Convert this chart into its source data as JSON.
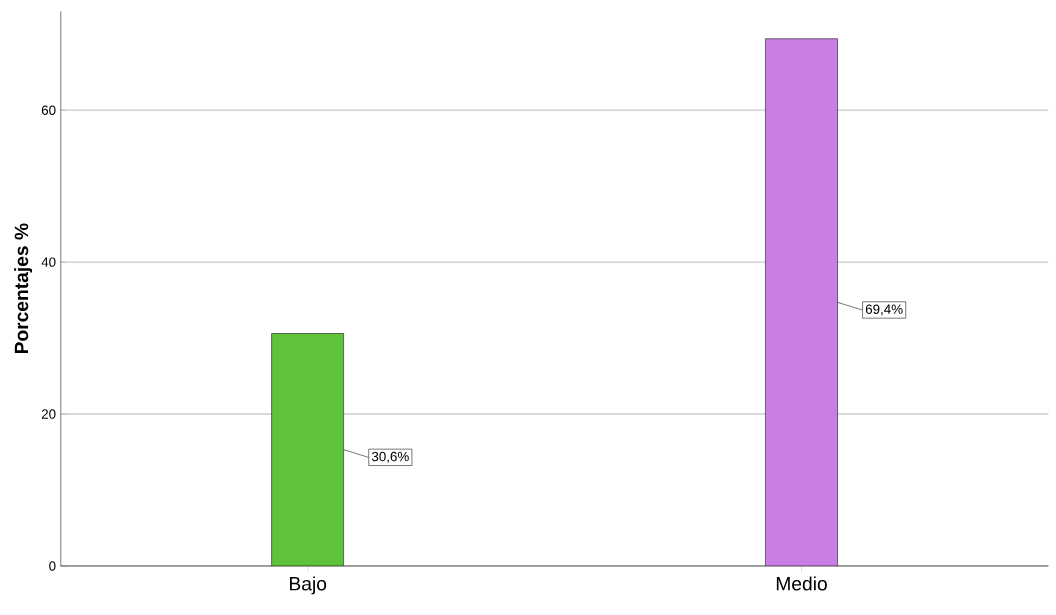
{
  "chart_data": {
    "type": "bar",
    "ylabel": "Porcentajes %",
    "categories": [
      "Bajo",
      "Medio"
    ],
    "values": [
      30.6,
      69.4
    ],
    "colors": [
      "#5ec23a",
      "#c87ee4"
    ],
    "value_labels": [
      "30,6%",
      "69,4%"
    ],
    "ylim": [
      0,
      73
    ],
    "yticks": [
      0,
      20,
      40,
      60
    ],
    "grid": "y"
  }
}
